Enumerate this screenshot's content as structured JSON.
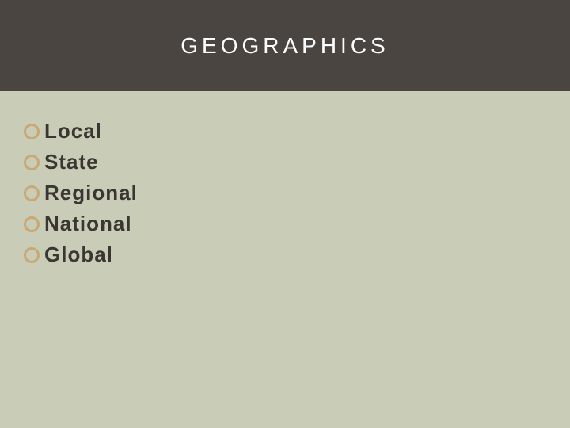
{
  "slide": {
    "title": "GEOGRAPHICS",
    "background_color": "#c9ccb6",
    "header": {
      "background_color": "#4a4541",
      "text_color": "#ffffff",
      "font_size": 28,
      "letter_spacing": 5
    },
    "bullet_style": {
      "ring_color": "#c9a875",
      "ring_border_width": 3,
      "text_color": "#3a3632",
      "text_font_size": 26,
      "text_font_weight": 600
    },
    "bullets": [
      {
        "label": "Local"
      },
      {
        "label": "State"
      },
      {
        "label": "Regional"
      },
      {
        "label": "National"
      },
      {
        "label": "Global"
      }
    ]
  }
}
